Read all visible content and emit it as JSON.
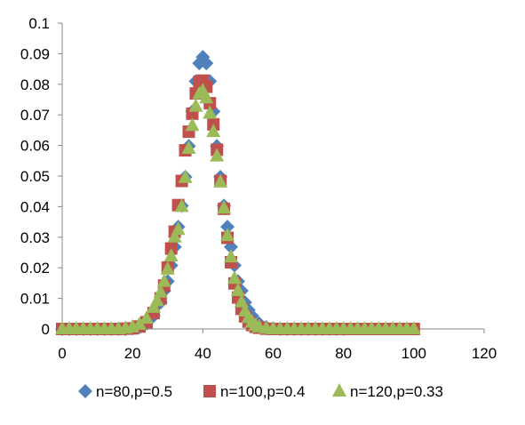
{
  "chart_data": {
    "type": "scatter",
    "title": "",
    "xlabel": "",
    "ylabel": "",
    "xlim": [
      0,
      120
    ],
    "ylim": [
      0,
      0.1
    ],
    "x_ticks": [
      "0",
      "20",
      "40",
      "60",
      "80",
      "100",
      "120"
    ],
    "y_ticks": [
      "0",
      "0.01",
      "0.02",
      "0.03",
      "0.04",
      "0.05",
      "0.06",
      "0.07",
      "0.08",
      "0.09",
      "0.1"
    ],
    "x_tick_values": [
      0,
      20,
      40,
      60,
      80,
      100,
      120
    ],
    "y_tick_values": [
      0,
      0.01,
      0.02,
      0.03,
      0.04,
      0.05,
      0.06,
      0.07,
      0.08,
      0.09,
      0.1
    ],
    "grid": false,
    "legend_position": "bottom",
    "series": [
      {
        "name": "n=80,p=0.5",
        "marker": "diamond",
        "color": "#4F81BD",
        "x": [
          0,
          2,
          4,
          6,
          8,
          10,
          12,
          14,
          16,
          18,
          20,
          22,
          24,
          26,
          28,
          29,
          30,
          31,
          32,
          33,
          34,
          35,
          36,
          37,
          38,
          39,
          40,
          41,
          42,
          43,
          44,
          45,
          46,
          47,
          48,
          49,
          50,
          51,
          52,
          53,
          54,
          56,
          58,
          60,
          62,
          64,
          66,
          68,
          70,
          72,
          74,
          76,
          78,
          80
        ],
        "y": [
          0,
          0,
          0,
          0,
          0,
          0,
          0,
          0,
          0,
          0,
          0.0002,
          0.0006,
          0.0018,
          0.0043,
          0.0087,
          0.0125,
          0.0156,
          0.0208,
          0.0268,
          0.0334,
          0.0403,
          0.0497,
          0.0598,
          0.0711,
          0.081,
          0.0869,
          0.0889,
          0.0869,
          0.081,
          0.0711,
          0.0598,
          0.0497,
          0.0403,
          0.0334,
          0.0268,
          0.0208,
          0.0156,
          0.0125,
          0.0087,
          0.0062,
          0.0043,
          0.0018,
          0.0006,
          0.0002,
          0,
          0,
          0,
          0,
          0,
          0,
          0,
          0,
          0,
          0
        ]
      },
      {
        "name": "n=100,p=0.4",
        "marker": "square",
        "color": "#C0504D",
        "x": [
          0,
          2,
          4,
          6,
          8,
          10,
          12,
          14,
          16,
          18,
          20,
          22,
          24,
          26,
          28,
          29,
          30,
          31,
          32,
          33,
          34,
          35,
          36,
          37,
          38,
          39,
          40,
          41,
          42,
          43,
          44,
          45,
          46,
          47,
          48,
          49,
          50,
          51,
          52,
          53,
          54,
          55,
          56,
          58,
          60,
          62,
          64,
          66,
          68,
          70,
          72,
          74,
          76,
          78,
          80,
          82,
          84,
          86,
          88,
          90,
          92,
          94,
          96,
          98,
          100
        ],
        "y": [
          0,
          0,
          0,
          0,
          0,
          0,
          0,
          0,
          0,
          0.0001,
          0.0002,
          0.0008,
          0.0022,
          0.0052,
          0.01,
          0.0142,
          0.0201,
          0.0263,
          0.0318,
          0.0405,
          0.0484,
          0.0584,
          0.0645,
          0.0704,
          0.077,
          0.0808,
          0.0812,
          0.0792,
          0.0738,
          0.0669,
          0.0586,
          0.0484,
          0.0393,
          0.0298,
          0.0218,
          0.0149,
          0.0103,
          0.0066,
          0.0041,
          0.0024,
          0.0013,
          0.0007,
          0.0004,
          0.0001,
          0,
          0,
          0,
          0,
          0,
          0,
          0,
          0,
          0,
          0,
          0,
          0,
          0,
          0,
          0,
          0,
          0,
          0,
          0,
          0,
          0
        ]
      },
      {
        "name": "n=120,p=0.33",
        "marker": "triangle",
        "color": "#9BBB59",
        "x": [
          0,
          2,
          4,
          6,
          8,
          10,
          12,
          14,
          16,
          18,
          20,
          22,
          24,
          26,
          27,
          28,
          29,
          30,
          31,
          32,
          33,
          34,
          35,
          36,
          37,
          38,
          39,
          40,
          41,
          42,
          43,
          44,
          45,
          46,
          47,
          48,
          49,
          50,
          51,
          52,
          53,
          54,
          55,
          56,
          58,
          60,
          62,
          64,
          66,
          68,
          70,
          72,
          74,
          76,
          78,
          80,
          82,
          84,
          86,
          88,
          90,
          92,
          94,
          96,
          98,
          100
        ],
        "y": [
          0,
          0,
          0,
          0,
          0,
          0,
          0,
          0,
          0,
          0.0002,
          0.0006,
          0.0015,
          0.0035,
          0.007,
          0.0092,
          0.012,
          0.0155,
          0.0195,
          0.0238,
          0.03,
          0.0325,
          0.04,
          0.0495,
          0.059,
          0.0665,
          0.0728,
          0.0769,
          0.0778,
          0.0755,
          0.0705,
          0.0645,
          0.0565,
          0.048,
          0.0395,
          0.0305,
          0.0235,
          0.0165,
          0.0125,
          0.0088,
          0.0058,
          0.0037,
          0.0022,
          0.0012,
          0.0006,
          0.0002,
          0,
          0,
          0,
          0,
          0,
          0,
          0,
          0,
          0,
          0,
          0,
          0,
          0,
          0,
          0,
          0,
          0,
          0,
          0,
          0,
          0
        ]
      }
    ]
  }
}
